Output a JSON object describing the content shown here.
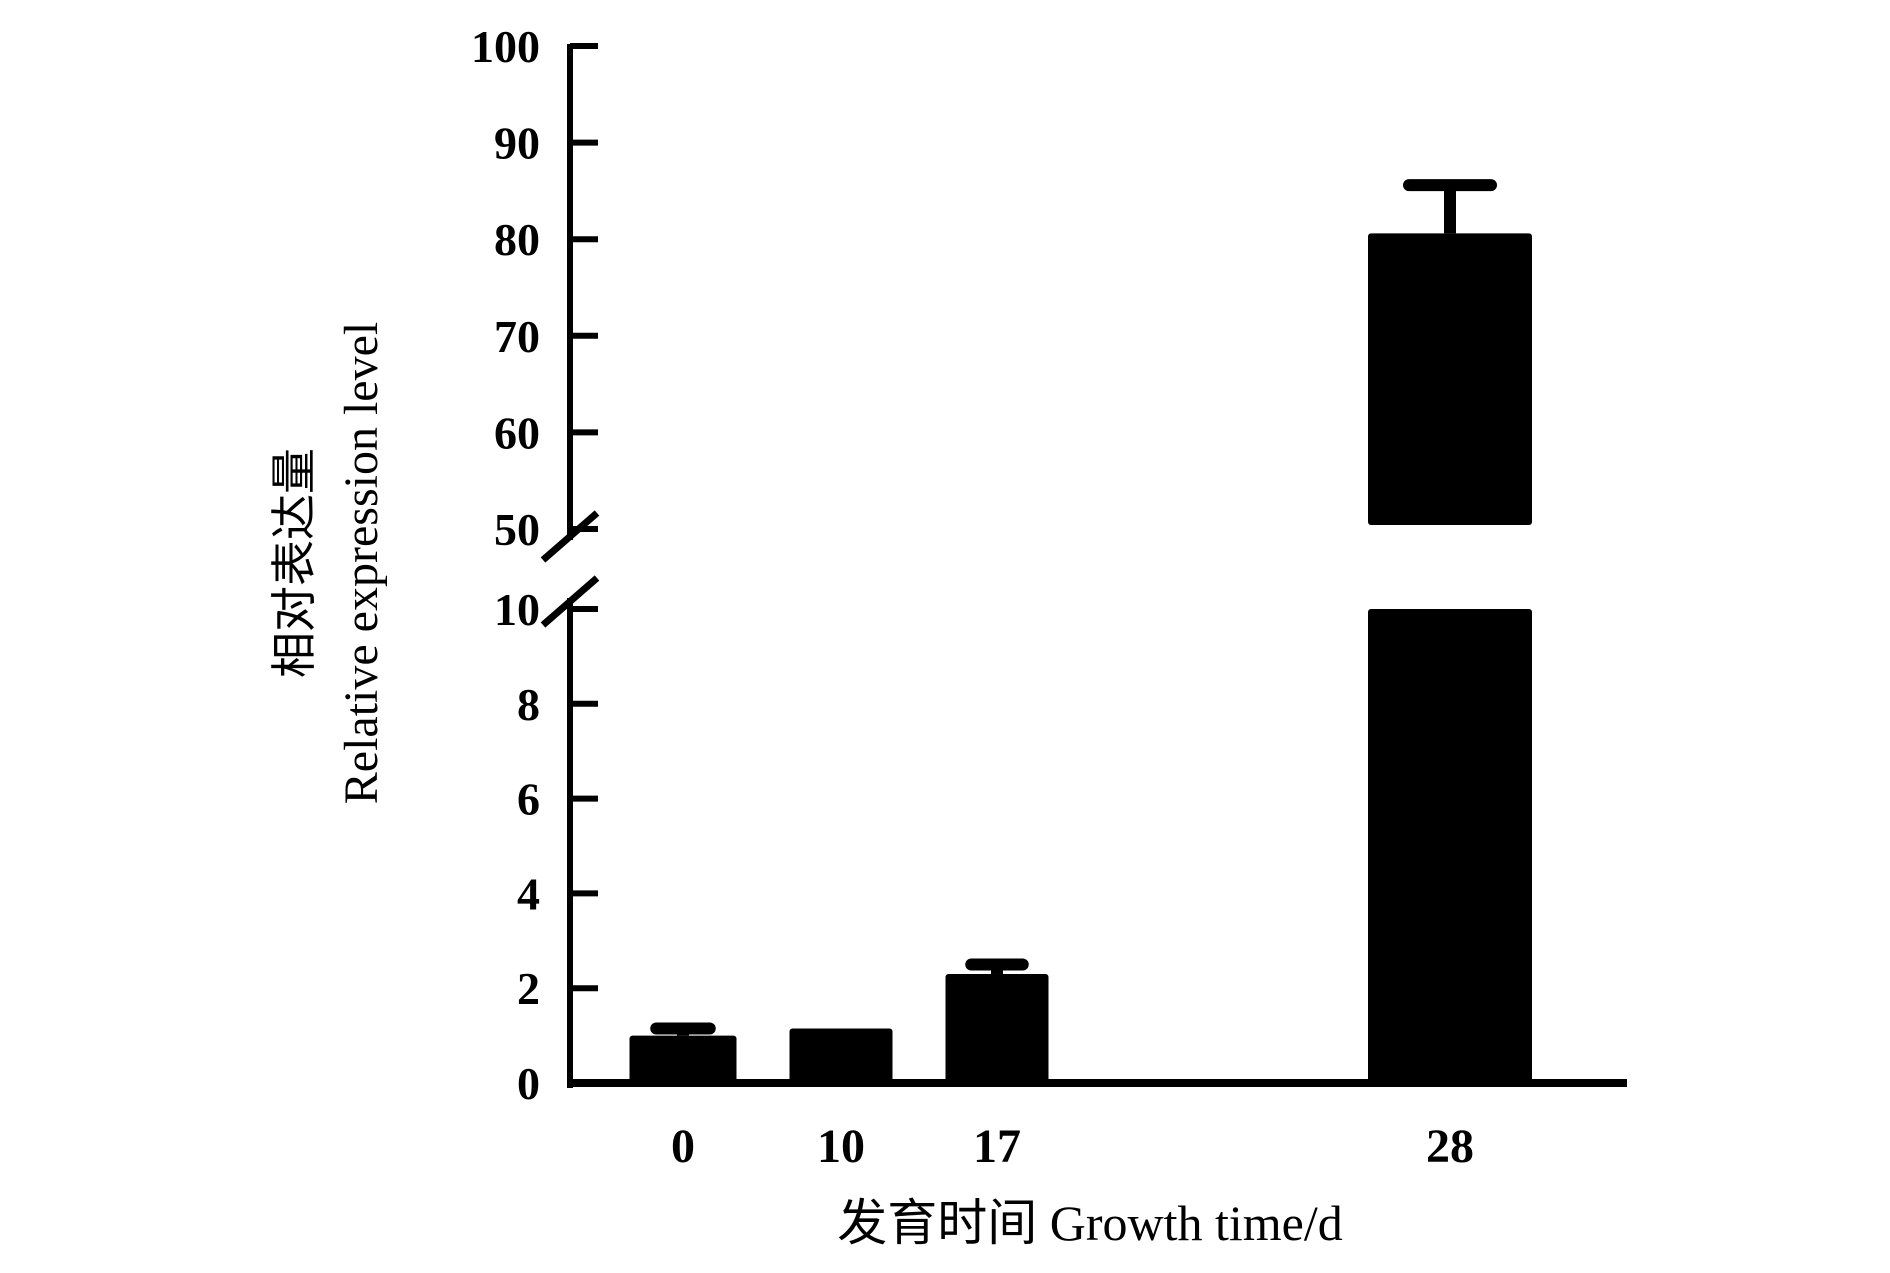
{
  "chart_data": {
    "type": "bar",
    "title": "",
    "xlabel": "发育时间 Growth time/d",
    "ylabel_cn": "相对表达量",
    "ylabel_en": "Relative expression level",
    "categories": [
      "0",
      "10",
      "17",
      "28"
    ],
    "values": [
      1.0,
      1.15,
      2.3,
      80.6
    ],
    "errors": [
      0.15,
      0.0,
      0.2,
      5.0
    ],
    "axis_break": {
      "lower": 10,
      "upper": 50
    },
    "ylim_lower": [
      0,
      10
    ],
    "ylim_upper": [
      50,
      100
    ],
    "yticks_lower": [
      "0",
      "2",
      "4",
      "6",
      "8",
      "10"
    ],
    "yticks_upper": [
      "50",
      "60",
      "70",
      "80",
      "90",
      "100"
    ],
    "grid": false,
    "bar_color": "#000000"
  }
}
